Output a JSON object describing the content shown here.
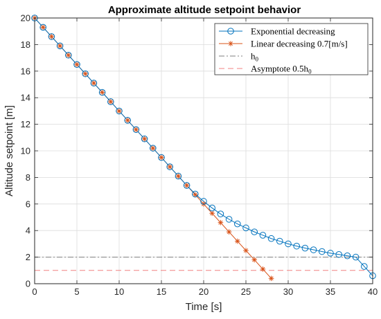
{
  "chart_data": {
    "type": "line",
    "title": "Approximate altitude setpoint behavior",
    "xlabel": "Time [s]",
    "ylabel": "Altitude setpoint [m]",
    "xlim": [
      0,
      40
    ],
    "ylim": [
      0,
      20
    ],
    "xticks": [
      0,
      5,
      10,
      15,
      20,
      25,
      30,
      35,
      40
    ],
    "yticks": [
      0,
      2,
      4,
      6,
      8,
      10,
      12,
      14,
      16,
      18,
      20
    ],
    "grid": true,
    "legend_position": "top-right",
    "series": [
      {
        "name": "Exponential decreasing",
        "color": "#0072BD",
        "marker": "circle",
        "x": [
          0,
          1,
          2,
          3,
          4,
          5,
          6,
          7,
          8,
          9,
          10,
          11,
          12,
          13,
          14,
          15,
          16,
          17,
          18,
          19,
          20,
          21,
          22,
          23,
          24,
          25,
          26,
          27,
          28,
          29,
          30,
          31,
          32,
          33,
          34,
          35,
          36,
          37,
          38,
          39,
          40
        ],
        "y": [
          20,
          19.3,
          18.6,
          17.9,
          17.2,
          16.5,
          15.8,
          15.1,
          14.4,
          13.7,
          13.0,
          12.3,
          11.6,
          10.9,
          10.2,
          9.5,
          8.8,
          8.1,
          7.4,
          6.75,
          6.2,
          5.7,
          5.25,
          4.85,
          4.5,
          4.2,
          3.9,
          3.65,
          3.4,
          3.2,
          3.0,
          2.83,
          2.68,
          2.55,
          2.42,
          2.3,
          2.2,
          2.1,
          2.0,
          1.3,
          0.6
        ]
      },
      {
        "name": "Linear decreasing 0.7[m/s]",
        "color": "#D95319",
        "marker": "asterisk",
        "x": [
          0,
          1,
          2,
          3,
          4,
          5,
          6,
          7,
          8,
          9,
          10,
          11,
          12,
          13,
          14,
          15,
          16,
          17,
          18,
          19,
          20,
          21,
          22,
          23,
          24,
          25,
          26,
          27,
          28
        ],
        "y": [
          20,
          19.3,
          18.6,
          17.9,
          17.2,
          16.5,
          15.8,
          15.1,
          14.4,
          13.7,
          13.0,
          12.3,
          11.6,
          10.9,
          10.2,
          9.5,
          8.8,
          8.1,
          7.4,
          6.7,
          6.0,
          5.3,
          4.6,
          3.9,
          3.2,
          2.5,
          1.8,
          1.1,
          0.4
        ]
      },
      {
        "name": "h0",
        "color": "#7F7F7F",
        "style": "dash-dot",
        "x": [
          0,
          40
        ],
        "y": [
          2,
          2
        ]
      },
      {
        "name": "Asymptote 0.5h0",
        "color": "#F08080",
        "style": "dashed",
        "x": [
          0,
          40
        ],
        "y": [
          1,
          1
        ]
      }
    ],
    "legend": [
      {
        "label": "Exponential decreasing",
        "sub": "",
        "tail": ""
      },
      {
        "label": "Linear decreasing 0.7[m/s]",
        "sub": "",
        "tail": ""
      },
      {
        "label": "h",
        "sub": "0",
        "tail": ""
      },
      {
        "label": "Asymptote 0.5h",
        "sub": "0",
        "tail": ""
      }
    ]
  }
}
